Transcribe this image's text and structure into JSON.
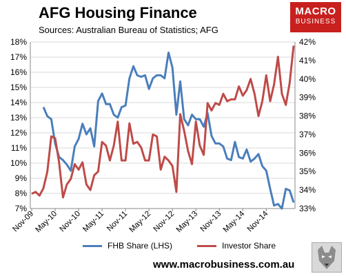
{
  "header": {
    "title": "AFG Housing Finance",
    "subtitle": "Sources: Australian Bureau of Statistics; AFG"
  },
  "logo": {
    "top": "MACRO",
    "bottom": "BUSINESS",
    "color": "#c8201e"
  },
  "footer": {
    "website": "www.macrobusiness.com.au",
    "wolf_icon": "wolf-icon"
  },
  "chart_data": {
    "type": "line",
    "left_axis": {
      "ticks": [
        "7%",
        "8%",
        "9%",
        "10%",
        "11%",
        "12%",
        "13%",
        "14%",
        "15%",
        "16%",
        "17%",
        "18%"
      ],
      "ylim": [
        7,
        18
      ]
    },
    "right_axis": {
      "ticks": [
        "33%",
        "34%",
        "35%",
        "36%",
        "37%",
        "38%",
        "39%",
        "40%",
        "41%",
        "42%"
      ],
      "ylim": [
        33,
        42
      ]
    },
    "x_ticks": [
      "Nov-09",
      "May-10",
      "Nov-10",
      "May-11",
      "Nov-11",
      "May-12",
      "Nov-12",
      "May-13",
      "Nov-13",
      "May-14",
      "Nov-14"
    ],
    "grid": true,
    "legend_position": "bottom",
    "series": [
      {
        "name": "FHB Share (LHS)",
        "axis": "left",
        "color": "#4a7ebb",
        "values": [
          13.7,
          13.1,
          12.9,
          11.3,
          10.4,
          10.2,
          9.9,
          9.5,
          11.1,
          11.6,
          12.6,
          11.9,
          12.3,
          11.1,
          14.1,
          14.6,
          13.9,
          13.9,
          13.2,
          13.0,
          13.7,
          13.8,
          15.6,
          16.4,
          15.8,
          15.7,
          15.8,
          14.9,
          15.6,
          15.8,
          15.8,
          15.6,
          17.3,
          16.3,
          13.2,
          15.4,
          12.9,
          12.5,
          13.2,
          12.9,
          12.9,
          12.4,
          13.3,
          11.8,
          11.3,
          11.3,
          11.1,
          10.3,
          10.2,
          11.4,
          10.4,
          10.3,
          10.9,
          10.1,
          10.3,
          10.6,
          9.8,
          9.5,
          8.3,
          7.2,
          7.3,
          7.0,
          8.3,
          8.2,
          7.4
        ]
      },
      {
        "name": "Investor Share",
        "axis": "right",
        "color": "#be4b48",
        "values": [
          33.8,
          33.9,
          33.7,
          34.1,
          35.0,
          36.9,
          36.8,
          35.5,
          33.6,
          34.3,
          34.6,
          35.4,
          35.1,
          35.5,
          34.3,
          34.0,
          34.8,
          35.0,
          36.6,
          36.4,
          35.6,
          36.4,
          37.7,
          35.6,
          35.6,
          37.6,
          36.5,
          36.6,
          36.3,
          35.6,
          35.6,
          37.0,
          36.9,
          35.1,
          35.8,
          35.6,
          35.3,
          33.9,
          38.1,
          37.2,
          36.1,
          35.4,
          37.7,
          36.4,
          35.9,
          38.7,
          38.3,
          38.7,
          38.6,
          39.2,
          38.8,
          38.9,
          38.9,
          39.6,
          39.1,
          39.4,
          40.0,
          39.2,
          38.0,
          38.8,
          40.2,
          38.8,
          39.7,
          41.2,
          39.2,
          38.6,
          39.8,
          41.8
        ]
      }
    ]
  }
}
